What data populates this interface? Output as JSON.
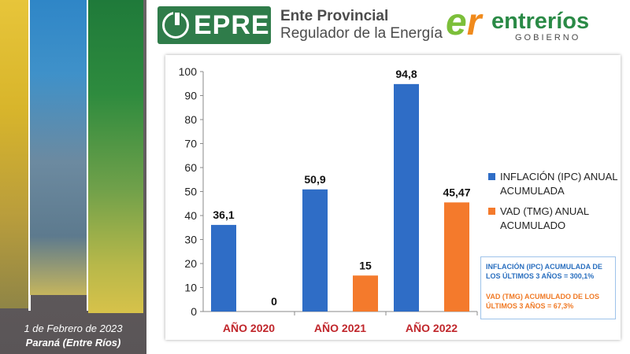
{
  "footer": {
    "date": "1 de Febrero de 2023",
    "place": "Paraná (Entre Ríos)"
  },
  "header": {
    "epre_abbr": "EPRE",
    "epre_name_line1": "Ente Provincial",
    "epre_name_line2": "Regulador de la Energía",
    "er_word": "entreríos",
    "er_sub": "GOBIERNO"
  },
  "colors": {
    "inflation": "#2f6dc6",
    "vad": "#f47a2c",
    "category_label": "#c0262b"
  },
  "chart_data": {
    "type": "bar",
    "categories": [
      "AÑO 2020",
      "AÑO 2021",
      "AÑO 2022"
    ],
    "series": [
      {
        "name": "INFLACIÓN (IPC) ANUAL ACUMULADA",
        "values": [
          36.1,
          50.9,
          94.8
        ],
        "labels": [
          "36,1",
          "50,9",
          "94,8"
        ]
      },
      {
        "name": "VAD (TMG) ANUAL ACUMULADO",
        "values": [
          0,
          15,
          45.47
        ],
        "labels": [
          "0",
          "15",
          "45,47"
        ]
      }
    ],
    "yticks": [
      "0",
      "10",
      "20",
      "30",
      "40",
      "50",
      "60",
      "70",
      "80",
      "90",
      "100"
    ],
    "ylim": [
      0,
      100
    ],
    "grid": false,
    "legend_position": "right"
  },
  "notes": {
    "inflation": "INFLACIÓN (IPC) ACUMULADA DE LOS ÚLTIMOS 3 AÑOS = 300,1%",
    "vad": "VAD (TMG) ACUMULADO DE LOS ÚLTIMOS 3 AÑOS = 67,3%"
  }
}
